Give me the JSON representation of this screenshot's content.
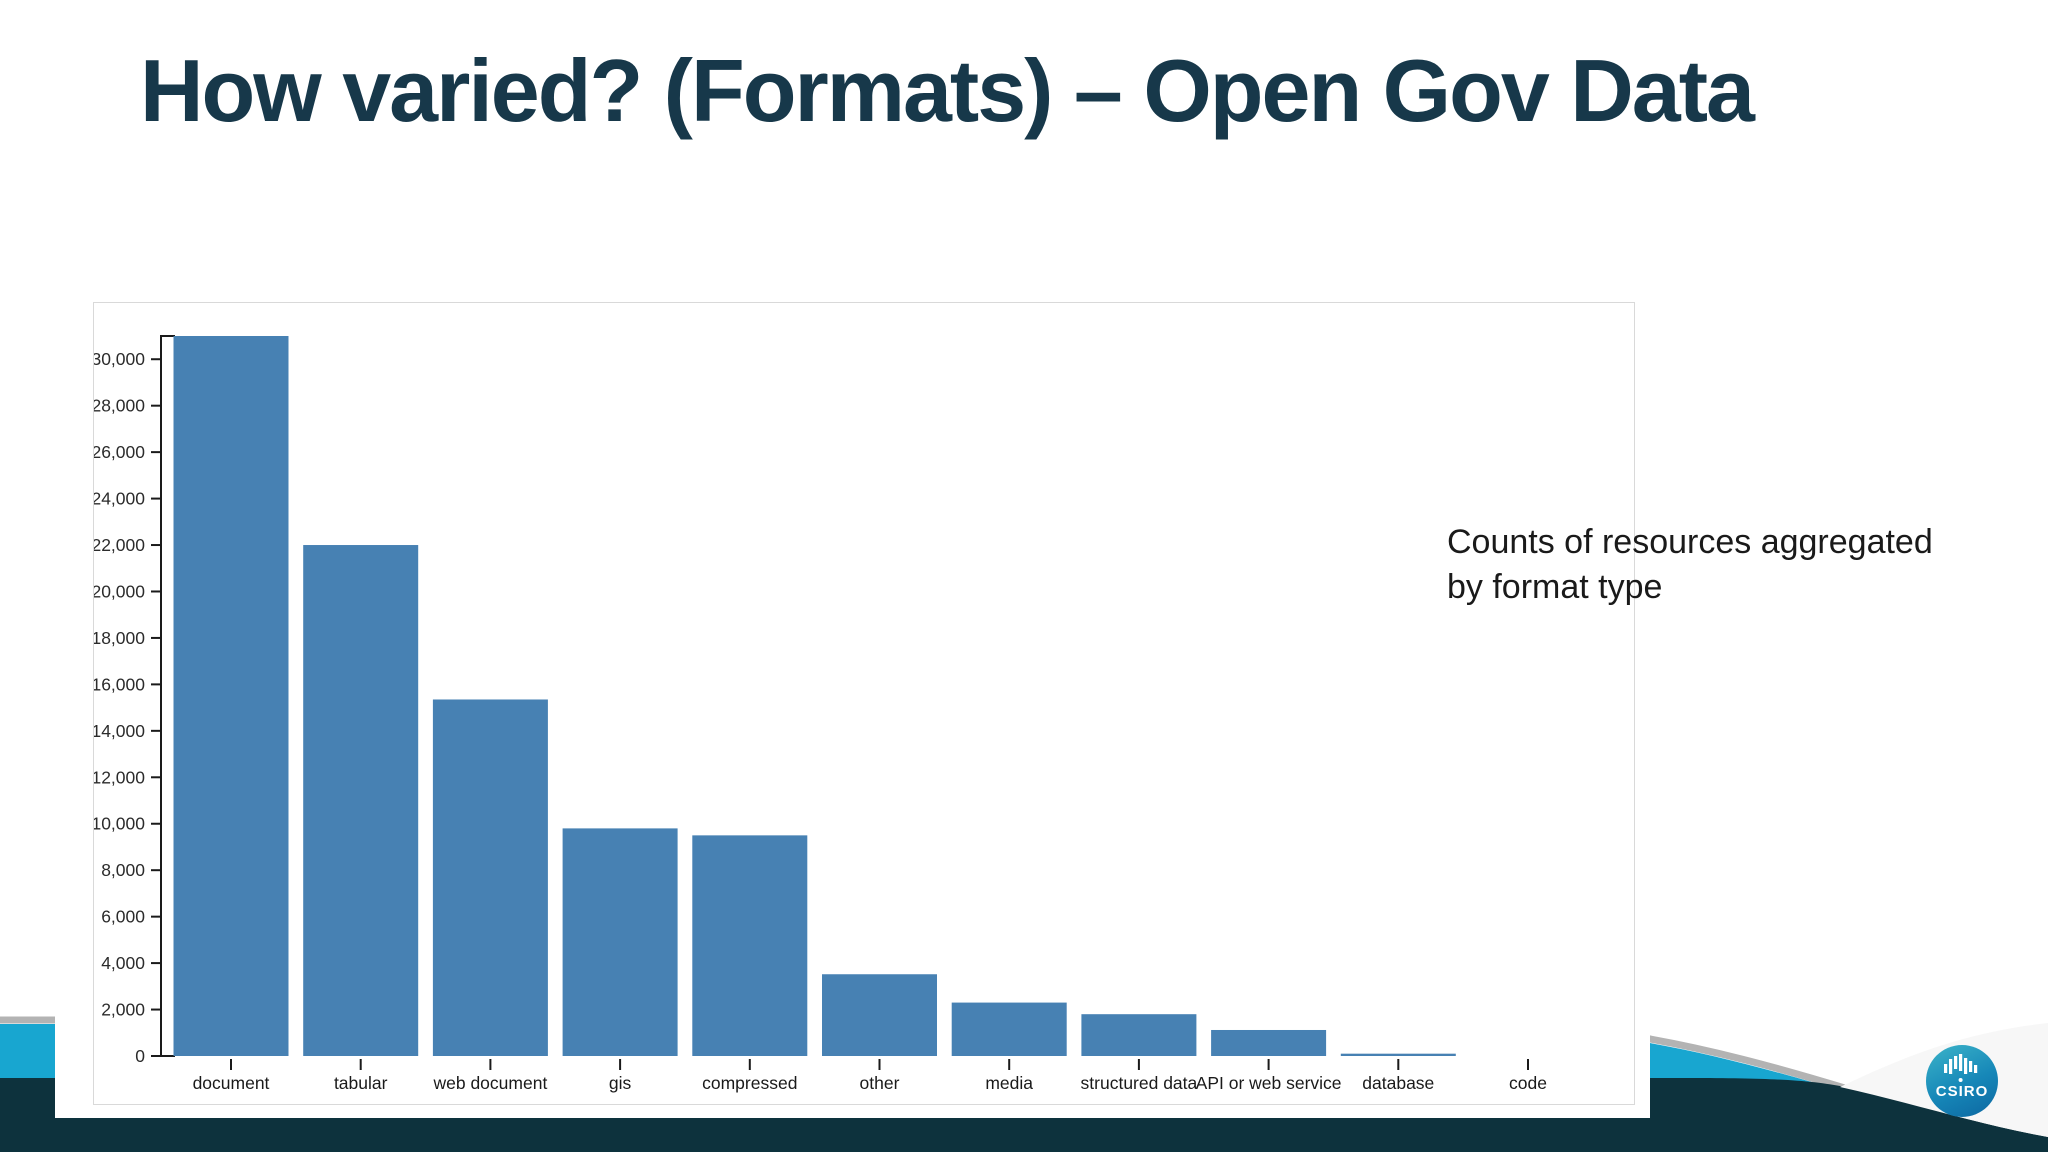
{
  "slide": {
    "title": "How varied? (Formats) – Open Gov Data",
    "annotation": "Counts of resources aggregated by format type"
  },
  "footer": {
    "logo_text": "CSIRO"
  },
  "colors": {
    "title": "#17384a",
    "bar": "#4781b3",
    "cyan_band": "#18a6d0",
    "band_edge": "#b3b3b3",
    "dark_band": "#0d323d",
    "swoosh": "#f7f7f7",
    "annotation": "#1a1a1a",
    "axis": "#1a1a1a",
    "panel_border": "#d9d9d9"
  },
  "chart_data": {
    "type": "bar",
    "title": "",
    "xlabel": "",
    "ylabel": "",
    "categories": [
      "document",
      "tabular",
      "web document",
      "gis",
      "compressed",
      "other",
      "media",
      "structured data",
      "API or web service",
      "database",
      "code"
    ],
    "values": [
      31000,
      22000,
      15350,
      9800,
      9500,
      3520,
      2300,
      1800,
      1120,
      100,
      0
    ],
    "ylim": [
      0,
      31000
    ],
    "yticks": [
      0,
      2000,
      4000,
      6000,
      8000,
      10000,
      12000,
      14000,
      16000,
      18000,
      20000,
      22000,
      24000,
      26000,
      28000,
      30000
    ],
    "ytick_labels": [
      "0",
      "2,000",
      "4,000",
      "6,000",
      "8,000",
      "10,000",
      "12,000",
      "14,000",
      "16,000",
      "18,000",
      "20,000",
      "22,000",
      "24,000",
      "26,000",
      "28,000",
      "30,000"
    ],
    "grid": false,
    "legend": false,
    "bar_color": "#4781b3",
    "annotation": "Counts of resources aggregated by format type"
  }
}
